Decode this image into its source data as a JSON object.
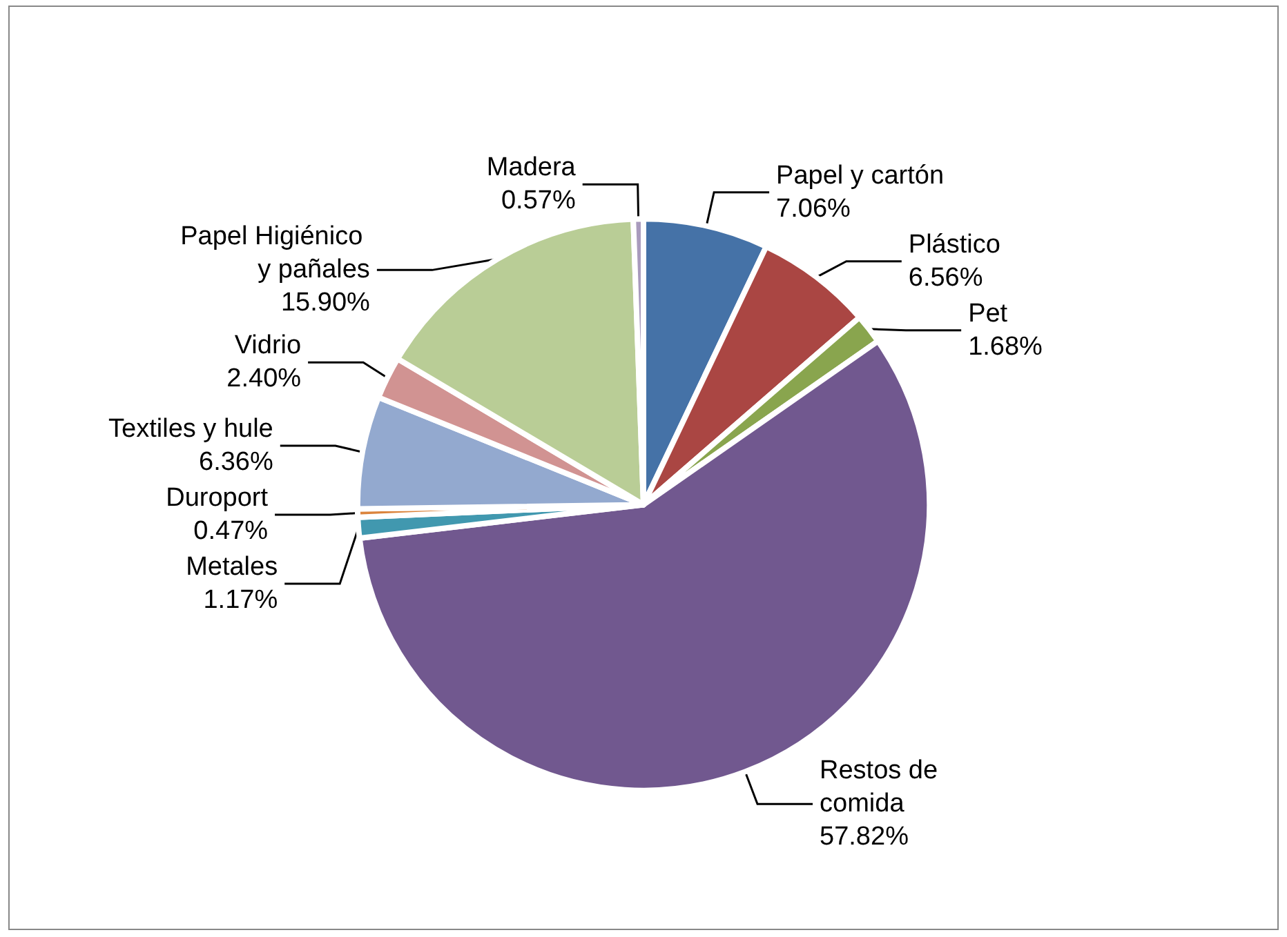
{
  "chart_data": {
    "type": "pie",
    "categories": [
      "Papel y cartón",
      "Plástico",
      "Pet",
      "Restos de comida",
      "Metales",
      "Duroport",
      "Textiles y hule",
      "Vidrio",
      "Papel Higiénico y pañales",
      "Madera"
    ],
    "values": [
      7.06,
      6.56,
      1.68,
      57.82,
      1.17,
      0.47,
      6.36,
      2.4,
      15.9,
      0.57
    ],
    "value_labels": [
      "7.06%",
      "6.56%",
      "1.68%",
      "57.82%",
      "1.17%",
      "0.47%",
      "6.36%",
      "2.40%",
      "15.90%",
      "0.57%"
    ],
    "colors": [
      "#4572a7",
      "#aa4643",
      "#89a54e",
      "#71588f",
      "#4198af",
      "#db843d",
      "#93a9cf",
      "#d19392",
      "#b9cd96",
      "#a99bbd"
    ]
  }
}
